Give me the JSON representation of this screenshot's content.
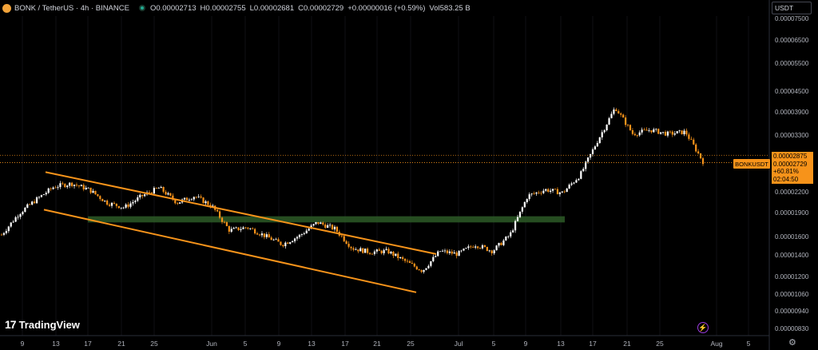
{
  "header": {
    "title": "BONK / TetherUS · 4h · BINANCE",
    "o_label": "O",
    "o_value": "0.00002713",
    "h_label": "H",
    "h_value": "0.00002755",
    "l_label": "L",
    "l_value": "0.00002681",
    "c_label": "C",
    "c_value": "0.00002729",
    "change": "+0.00000016 (+0.59%)",
    "vol_label": "Vol",
    "vol_value": "583.25 B"
  },
  "currency_selector": "USDT",
  "symbol_label": "BONKUSDT",
  "price_box": {
    "high": "0.00002875",
    "last": "0.00002729",
    "change_pct": "+60.81%",
    "countdown": "02:04:50"
  },
  "logo": "TradingView",
  "colors": {
    "up": "#ffffff",
    "down": "#f7931a",
    "channel": "#f7931a",
    "zone": "#2d5a27",
    "accent": "#f7931a"
  },
  "chart_data": {
    "type": "candlestick",
    "y_axis_labels": [
      "0.00007500",
      "0.00006500",
      "0.00005500",
      "0.00004500",
      "0.00003900",
      "0.00003300",
      "0.00002200",
      "0.00001900",
      "0.00001600",
      "0.00001400",
      "0.00001200",
      "0.00001060",
      "0.00000940",
      "0.00000830"
    ],
    "x_axis_labels": [
      "9",
      "13",
      "17",
      "21",
      "25",
      "Jun",
      "5",
      "9",
      "13",
      "17",
      "21",
      "25",
      "Jul",
      "5",
      "9",
      "13",
      "17",
      "21",
      "25",
      "Aug",
      "5"
    ],
    "scale": "log",
    "price_path_close": [
      1.63e-05,
      1.9e-05,
      2.1e-05,
      2.3e-05,
      2.35e-05,
      2.25e-05,
      2.05e-05,
      1.98e-05,
      2.15e-05,
      2.28e-05,
      2.05e-05,
      2.15e-05,
      2e-05,
      1.68e-05,
      1.72e-05,
      1.62e-05,
      1.52e-05,
      1.62e-05,
      1.78e-05,
      1.7e-05,
      1.48e-05,
      1.44e-05,
      1.45e-05,
      1.35e-05,
      1.26e-05,
      1.45e-05,
      1.42e-05,
      1.52e-05,
      1.45e-05,
      1.63e-05,
      2.15e-05,
      2.25e-05,
      2.2e-05,
      2.5e-05,
      3.2e-05,
      4.05e-05,
      3.35e-05,
      3.45e-05,
      3.35e-05,
      3.4e-05,
      2.75e-05
    ],
    "channel_upper": [
      [
        13,
        2.55e-05
      ],
      [
        25,
        1.42e-05
      ]
    ],
    "channel_lower": [
      [
        13,
        1.95e-05
      ],
      [
        25,
        1.08e-05
      ]
    ],
    "zone": {
      "from": "17",
      "to": "13",
      "low": 1.78e-05,
      "high": 1.86e-05
    },
    "last_price": 2.729e-05,
    "high_line": 2.875e-05
  }
}
